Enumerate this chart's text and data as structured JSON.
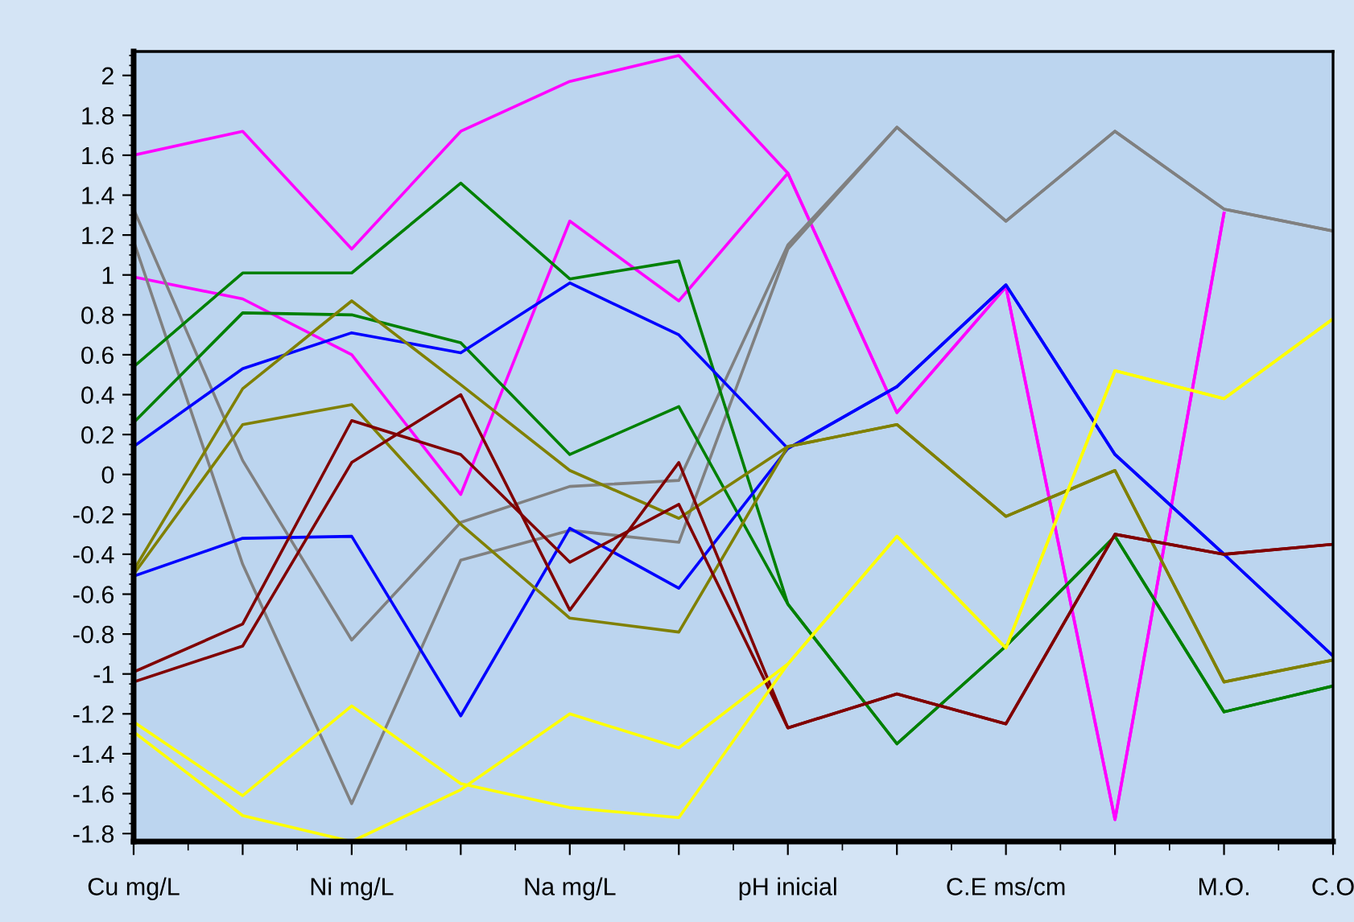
{
  "chart_data": {
    "type": "line",
    "categories": [
      "Cu mg/L",
      null,
      "Ni mg/L",
      null,
      "Na mg/L",
      null,
      "pH inicial",
      null,
      "C.E ms/cm",
      null,
      "M.O.",
      "C.O"
    ],
    "ylim": [
      -1.84,
      2.12
    ],
    "yticks": [
      -1.8,
      -1.6,
      -1.4,
      -1.2,
      -1,
      -0.8,
      -0.6,
      -0.4,
      -0.2,
      0,
      0.2,
      0.4,
      0.6,
      0.8,
      1,
      1.2,
      1.4,
      1.6,
      1.8,
      2
    ],
    "grid": false,
    "legend": false,
    "marker": "none",
    "line_style": "solid",
    "series": [
      {
        "color": "#ff00ff",
        "values": [
          1.6,
          1.72,
          1.13,
          1.72,
          1.97,
          2.1,
          1.51,
          0.31,
          0.94,
          -1.73,
          1.31,
          null
        ]
      },
      {
        "color": "#ff00ff",
        "values": [
          0.99,
          0.88,
          0.6,
          -0.1,
          1.27,
          0.87,
          1.51,
          0.31,
          0.94,
          -1.73,
          1.31,
          null
        ]
      },
      {
        "color": "#808080",
        "values": [
          1.33,
          0.07,
          -0.83,
          -0.24,
          -0.06,
          -0.03,
          1.15,
          1.74,
          1.27,
          1.72,
          1.33,
          1.22
        ]
      },
      {
        "color": "#808080",
        "values": [
          1.17,
          -0.45,
          -1.65,
          -0.43,
          -0.28,
          -0.34,
          1.13,
          1.74,
          1.27,
          1.72,
          1.33,
          1.22
        ]
      },
      {
        "color": "#008000",
        "values": [
          0.54,
          1.01,
          1.01,
          1.46,
          0.98,
          1.07,
          -0.65,
          -1.35,
          -0.86,
          -0.31,
          -1.19,
          -1.06
        ]
      },
      {
        "color": "#008000",
        "values": [
          0.26,
          0.81,
          0.8,
          0.66,
          0.1,
          0.34,
          -0.65,
          -1.35,
          -0.86,
          -0.31,
          -1.19,
          -1.06
        ]
      },
      {
        "color": "#0000ff",
        "values": [
          0.14,
          0.53,
          0.71,
          0.61,
          0.96,
          0.7,
          0.13,
          0.44,
          0.95,
          0.1,
          -0.4,
          -0.91
        ]
      },
      {
        "color": "#0000ff",
        "values": [
          -0.51,
          -0.32,
          -0.31,
          -1.21,
          -0.27,
          -0.57,
          0.13,
          0.44,
          0.95,
          0.1,
          -0.4,
          -0.91
        ]
      },
      {
        "color": "#808000",
        "values": [
          -0.48,
          0.43,
          0.87,
          0.45,
          0.02,
          -0.22,
          0.14,
          0.25,
          -0.21,
          0.02,
          -1.04,
          -0.93
        ]
      },
      {
        "color": "#808000",
        "values": [
          -0.5,
          0.25,
          0.35,
          -0.25,
          -0.72,
          -0.79,
          0.14,
          0.25,
          -0.21,
          0.02,
          -1.04,
          -0.93
        ]
      },
      {
        "color": "#800000",
        "values": [
          -0.99,
          -0.75,
          0.27,
          0.1,
          -0.44,
          -0.15,
          -1.27,
          -1.1,
          -1.25,
          -0.3,
          -0.4,
          -0.35
        ]
      },
      {
        "color": "#800000",
        "values": [
          -1.04,
          -0.86,
          0.06,
          0.4,
          -0.68,
          0.06,
          -1.27,
          -1.1,
          -1.25,
          -0.3,
          -0.4,
          -0.35
        ]
      },
      {
        "color": "#ffff00",
        "values": [
          -1.24,
          -1.61,
          -1.16,
          -1.55,
          -1.67,
          -1.72,
          -0.95,
          -0.31,
          -0.87,
          0.52,
          0.38,
          0.78
        ]
      },
      {
        "color": "#ffff00",
        "values": [
          -1.29,
          -1.71,
          -1.84,
          -1.58,
          -1.2,
          -1.37,
          -0.95,
          -0.31,
          -0.87,
          0.52,
          0.38,
          0.78
        ]
      }
    ]
  }
}
